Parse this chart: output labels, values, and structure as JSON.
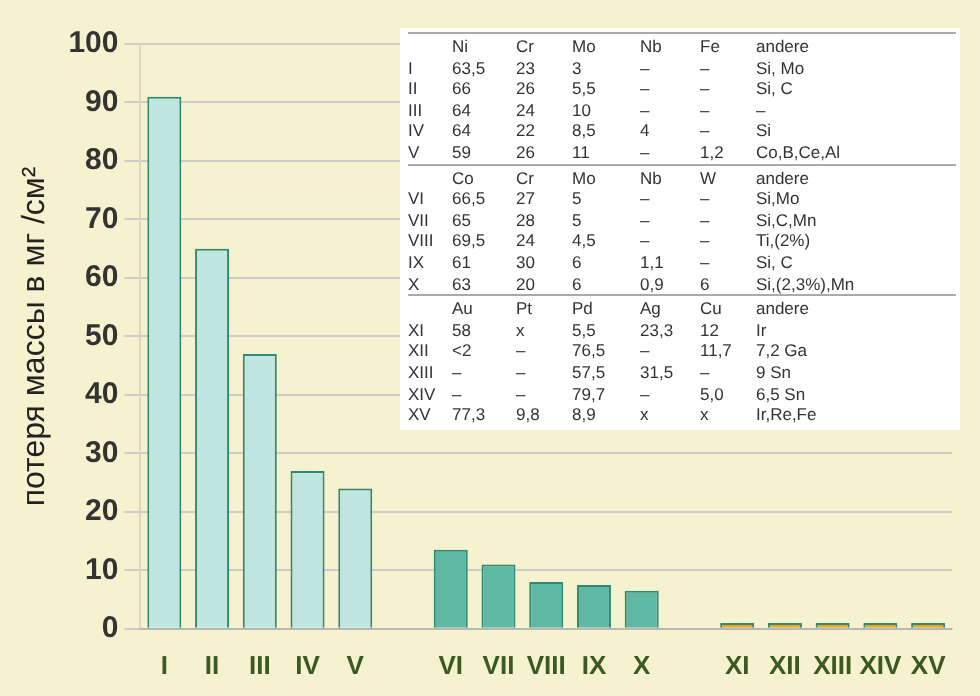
{
  "chart_data": {
    "type": "bar",
    "ylabel": "потеря массы в мг /см²",
    "categories": [
      "I",
      "II",
      "III",
      "IV",
      "V",
      null,
      "VI",
      "VII",
      "VIII",
      "IX",
      "X",
      null,
      "XI",
      "XII",
      "XIII",
      "XIV",
      "XV"
    ],
    "values": [
      91,
      65,
      47,
      27,
      24,
      null,
      13.5,
      11,
      8,
      7.5,
      6.5,
      null,
      1,
      1,
      1,
      1,
      1
    ],
    "colors": [
      "#bfe6e0",
      "#bfe6e0",
      "#bfe6e0",
      "#bfe6e0",
      "#bfe6e0",
      "#bfe6e0",
      "#5fb8a4",
      "#5fb8a4",
      "#5fb8a4",
      "#5fb8a4",
      "#5fb8a4",
      "#5fb8a4",
      "#f0a424",
      "#f0a424",
      "#f0a424",
      "#f0a424",
      "#f0a424"
    ],
    "ylim": [
      0,
      100
    ],
    "yticks": [
      0,
      10,
      20,
      30,
      40,
      50,
      60,
      70,
      80,
      90,
      100
    ],
    "grid": "y",
    "annotations": [
      "Ni",
      "Cr",
      "Mo",
      "Nb",
      "Fe",
      "andere",
      "I",
      "63,5",
      "23",
      "3",
      "–",
      "–",
      "Si, Mo",
      "II",
      "66",
      "26",
      "5,5",
      "–",
      "–",
      "Si, C",
      "III",
      "64",
      "24",
      "10",
      "–",
      "–",
      "–",
      "IV",
      "64",
      "22",
      "8,5",
      "4",
      "–",
      "Si",
      "V",
      "59",
      "26",
      "11",
      "–",
      "1,2",
      "Co,B,Ce,Al",
      "Co",
      "Cr",
      "Mo",
      "Nb",
      "W",
      "andere",
      "VI",
      "66,5",
      "27",
      "5",
      "–",
      "–",
      "Si,Mo",
      "VII",
      "65",
      "28",
      "5",
      "–",
      "–",
      "Si,C,Mn",
      "VIII",
      "69,5",
      "24",
      "4,5",
      "–",
      "–",
      "Ti,(2%)",
      "IX",
      "61",
      "30",
      "6",
      "1,1",
      "–",
      "Si, C",
      "X",
      "63",
      "20",
      "6",
      "0,9",
      "6",
      "Si,(2,3%),Mn",
      "Au",
      "Pt",
      "Pd",
      "Ag",
      "Cu",
      "andere",
      "XI",
      "58",
      "x",
      "5,5",
      "23,3",
      "12",
      "Ir",
      "XII",
      "<2",
      "–",
      "76,5",
      "–",
      "11,7",
      "7,2 Ga",
      "XIII",
      "–",
      "–",
      "57,5",
      "31,5",
      "–",
      "9 Sn",
      "XIV",
      "–",
      "–",
      "79,7",
      "–",
      "5,0",
      "6,5 Sn",
      "XV",
      "77,3",
      "9,8",
      "8,9",
      "x",
      "x",
      "Ir,Re,Fe"
    ]
  }
}
